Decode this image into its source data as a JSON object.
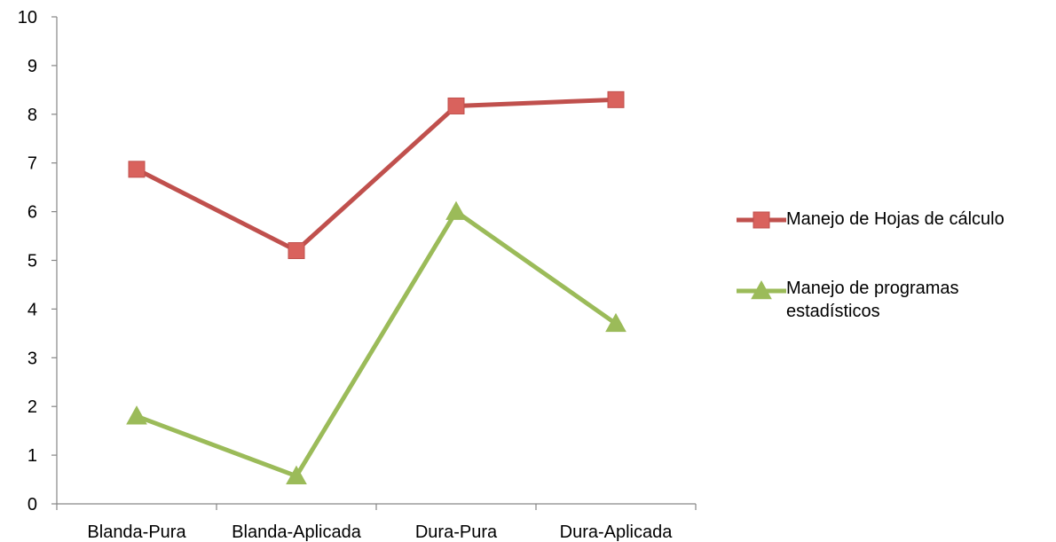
{
  "chart_data": {
    "type": "line",
    "categories": [
      "Blanda-Pura",
      "Blanda-Aplicada",
      "Dura-Pura",
      "Dura-Aplicada"
    ],
    "series": [
      {
        "name": "Manejo de Hojas de cálculo",
        "values": [
          6.87,
          5.2,
          8.17,
          8.3
        ],
        "color": "#c0504d",
        "fill": "#d9625d",
        "marker": "square"
      },
      {
        "name": "Manejo de programas estadísticos",
        "values": [
          1.8,
          0.57,
          6.0,
          3.7
        ],
        "color": "#9bbb59",
        "fill": "#9bbb59",
        "marker": "triangle"
      }
    ],
    "ylim": [
      0,
      10
    ],
    "yticks": [
      "0",
      "1",
      "2",
      "3",
      "4",
      "5",
      "6",
      "7",
      "8",
      "9",
      "10"
    ],
    "title": "",
    "xlabel": "",
    "ylabel": "",
    "grid": false,
    "legend_position": "right"
  }
}
